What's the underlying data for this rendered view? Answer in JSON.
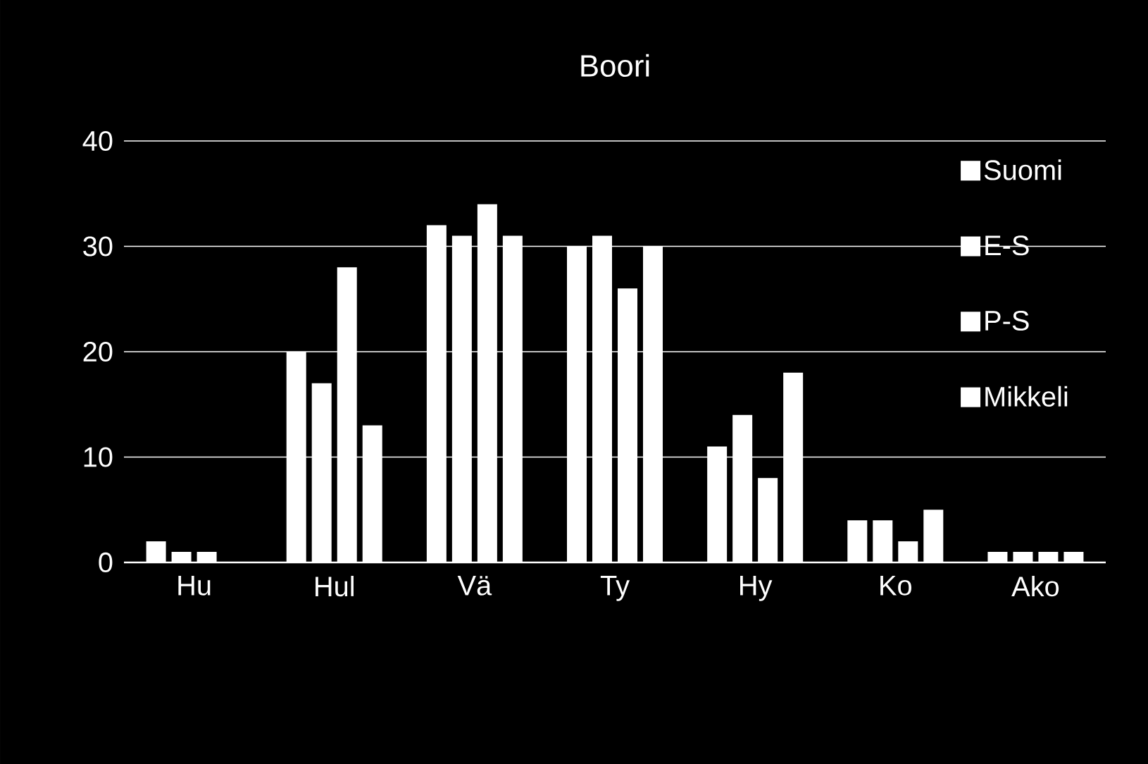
{
  "chart_data": {
    "type": "bar",
    "title": "Boori",
    "categories": [
      "Hu",
      "Hul",
      "Vä",
      "Ty",
      "Hy",
      "Ko",
      "Ako"
    ],
    "series": [
      {
        "name": "Suomi",
        "color": "#ffffff",
        "values": [
          2,
          20,
          32,
          30,
          11,
          4,
          1
        ]
      },
      {
        "name": "E-S",
        "color": "#ffffff",
        "values": [
          1,
          17,
          31,
          31,
          14,
          4,
          1
        ]
      },
      {
        "name": "P-S",
        "color": "#ffffff",
        "values": [
          1,
          28,
          34,
          26,
          8,
          2,
          1
        ]
      },
      {
        "name": "Mikkeli",
        "color": "#ffffff",
        "values": [
          0,
          13,
          31,
          30,
          18,
          5,
          1
        ]
      }
    ],
    "ylim": [
      0,
      40
    ],
    "yticks": [
      0,
      10,
      20,
      30,
      40
    ],
    "grid": "y",
    "legend": "top right"
  }
}
